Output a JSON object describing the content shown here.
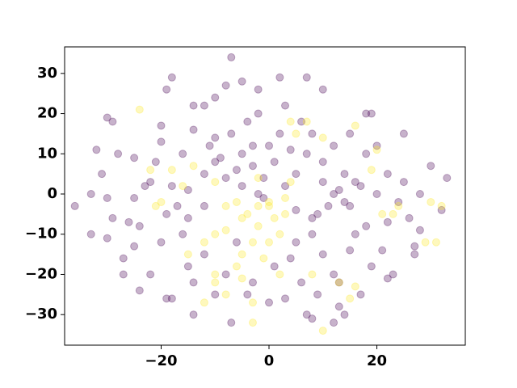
{
  "chart_data": {
    "type": "scatter",
    "xlim": [
      -37.9,
      36.4
    ],
    "ylim": [
      -37.6,
      36.6
    ],
    "xticks": [
      {
        "value": -20,
        "label": "−20"
      },
      0,
      20
    ],
    "yticks": [
      {
        "value": -30,
        "label": "−30"
      },
      {
        "value": -20,
        "label": "−20"
      },
      {
        "value": -10,
        "label": "−10"
      },
      0,
      10,
      20,
      30
    ],
    "series": [
      {
        "color": "#440154",
        "alpha": 0.3,
        "x": [
          -7,
          -36,
          -33,
          -32,
          -33,
          -31,
          -27,
          -27,
          -24,
          -19,
          -18,
          -14,
          -7,
          -4,
          7,
          8,
          13,
          14,
          30,
          33,
          32,
          27,
          27,
          23,
          22,
          21,
          25,
          18,
          19,
          10,
          7,
          2,
          -2,
          -5,
          -8,
          -18,
          -19,
          -14,
          -12,
          -10,
          -30,
          -29,
          -30,
          -25,
          -28,
          -25,
          -20,
          -20,
          -30,
          -29,
          -22,
          -18,
          -15,
          -10,
          -5,
          -3,
          0,
          2,
          -7,
          -8,
          -12,
          -16,
          -20,
          -22,
          -15,
          -12,
          -8,
          -6,
          -3,
          1,
          4,
          5,
          5,
          8,
          8,
          10,
          12,
          13,
          16,
          18,
          15,
          12,
          10,
          14,
          17,
          20,
          22,
          24,
          22,
          19,
          15,
          6,
          9,
          3,
          0,
          6,
          3,
          -2,
          -4,
          -10,
          -14,
          -16,
          -12,
          5,
          3,
          7,
          10,
          12,
          15,
          18,
          8,
          -1,
          -5,
          -2,
          26,
          28,
          28,
          25,
          20,
          -24,
          -19,
          -15,
          -25,
          -10,
          -14,
          17,
          12,
          -6,
          -9,
          -3,
          1,
          4,
          -1,
          11,
          13,
          16,
          14,
          9,
          -11,
          -17,
          -21,
          -26,
          -23
        ],
        "y": [
          34,
          -3,
          -10,
          11,
          0,
          5,
          -16,
          -20,
          -24,
          -26,
          -26,
          -30,
          -32,
          -25,
          -30,
          -31,
          -28,
          -30,
          7,
          4,
          -4,
          -15,
          -13,
          -20,
          -21,
          -14,
          15,
          20,
          20,
          26,
          29,
          29,
          26,
          28,
          27,
          29,
          26,
          22,
          22,
          24,
          -11,
          -6,
          -1,
          -1,
          10,
          9,
          13,
          17,
          19,
          18,
          3,
          2,
          1,
          8,
          10,
          7,
          12,
          15,
          15,
          4,
          -3,
          -10,
          -12,
          -20,
          -18,
          -15,
          -20,
          -12,
          -22,
          -18,
          -16,
          -12,
          -4,
          -6,
          -10,
          -15,
          -20,
          -22,
          -10,
          -8,
          -3,
          0,
          3,
          5,
          2,
          0,
          5,
          -2,
          -7,
          -18,
          -14,
          -22,
          -25,
          -26,
          -27,
          18,
          22,
          20,
          18,
          14,
          16,
          10,
          5,
          5,
          2,
          10,
          8,
          12,
          15,
          10,
          15,
          4,
          2,
          0,
          -6,
          -9,
          0,
          3,
          12,
          -8,
          -5,
          -6,
          -13,
          -25,
          -22,
          -25,
          -32,
          6,
          9,
          12,
          8,
          11,
          -1,
          -3,
          1,
          3,
          -2,
          -5,
          12,
          -3,
          8,
          -7,
          2
        ]
      },
      {
        "color": "#fde725",
        "alpha": 0.3,
        "x": [
          -24,
          -22,
          -18,
          -14,
          -10,
          -8,
          -4,
          -2,
          0,
          1,
          3,
          -5,
          -6,
          -3,
          2,
          -10,
          -12,
          -16,
          -20,
          -21,
          -12,
          -10,
          -8,
          -5,
          -3,
          -1,
          0,
          4,
          5,
          4,
          7,
          10,
          16,
          20,
          19,
          24,
          23,
          30,
          32,
          31,
          29,
          21,
          10,
          13,
          15,
          16,
          8,
          2,
          -2,
          -5,
          -8,
          0,
          -2,
          -6,
          3,
          -3,
          -10,
          -15
        ],
        "y": [
          21,
          6,
          6,
          7,
          3,
          -3,
          -5,
          -8,
          -2,
          -6,
          -1,
          -15,
          -18,
          -12,
          -10,
          -10,
          -12,
          2,
          -2,
          -3,
          -27,
          -20,
          -25,
          -21,
          -32,
          -16,
          -3,
          3,
          15,
          18,
          18,
          14,
          17,
          11,
          6,
          -3,
          -5,
          -2,
          -3,
          -12,
          -12,
          -5,
          -34,
          -22,
          -26,
          -23,
          -20,
          -20,
          4,
          -6,
          -9,
          -12,
          -3,
          -2,
          -5,
          -27,
          -22,
          -15
        ]
      }
    ]
  }
}
